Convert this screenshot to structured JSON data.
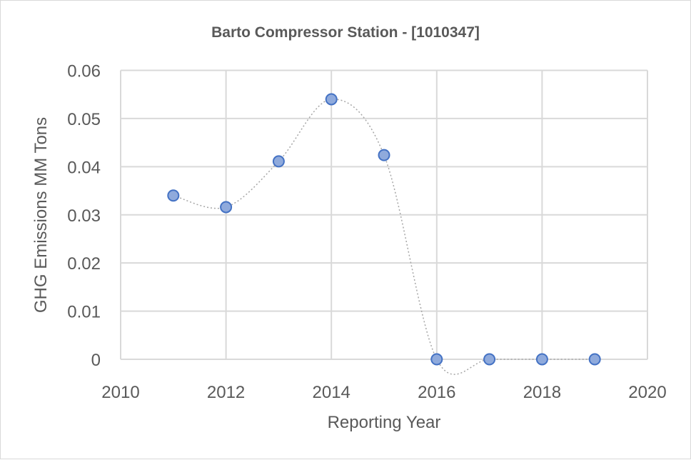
{
  "chart_data": {
    "type": "scatter",
    "title": "Barto Compressor Station - [1010347]",
    "xlabel": "Reporting Year",
    "ylabel": "GHG Emissions MM Tons",
    "xlim": [
      2010,
      2020
    ],
    "ylim": [
      0,
      0.06
    ],
    "xticks": [
      "2010",
      "2012",
      "2014",
      "2016",
      "2018",
      "2020"
    ],
    "yticks": [
      "0",
      "0.01",
      "0.02",
      "0.03",
      "0.04",
      "0.05",
      "0.06"
    ],
    "grid": true,
    "line_style": "smoothed dotted",
    "series": [
      {
        "x": [
          2011,
          2012,
          2013,
          2014,
          2015,
          2016,
          2017,
          2018,
          2019
        ],
        "y": [
          0.034,
          0.0316,
          0.0411,
          0.054,
          0.0424,
          0,
          0,
          0,
          0
        ]
      }
    ],
    "colors": {
      "marker_fill": "#8faadc",
      "marker_stroke": "#4472c4",
      "line": "#a6a6a6",
      "grid": "#d9d9d9",
      "text": "#595959"
    }
  }
}
